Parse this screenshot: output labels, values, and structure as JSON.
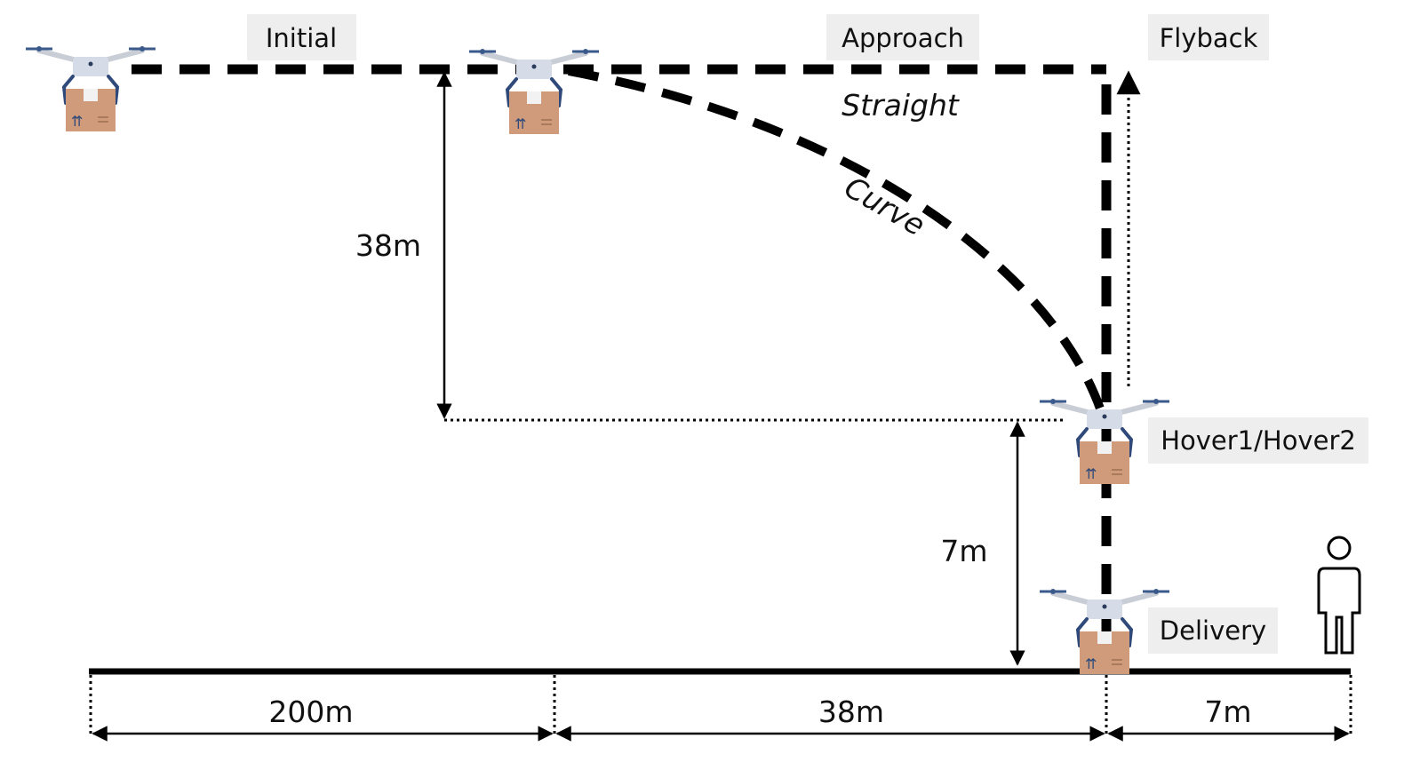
{
  "phases": {
    "initial": "Initial",
    "approach": "Approach",
    "flyback": "Flyback",
    "hover": "Hover1/Hover2",
    "delivery": "Delivery"
  },
  "paths": {
    "straight": "Straight",
    "curve": "Curve"
  },
  "dimensions": {
    "altitude": "38m",
    "hover_height": "7m",
    "horizontal_1": "200m",
    "horizontal_2": "38m",
    "horizontal_3": "7m"
  },
  "icons": {
    "drone": "drone-with-package-icon",
    "person": "person-icon"
  }
}
